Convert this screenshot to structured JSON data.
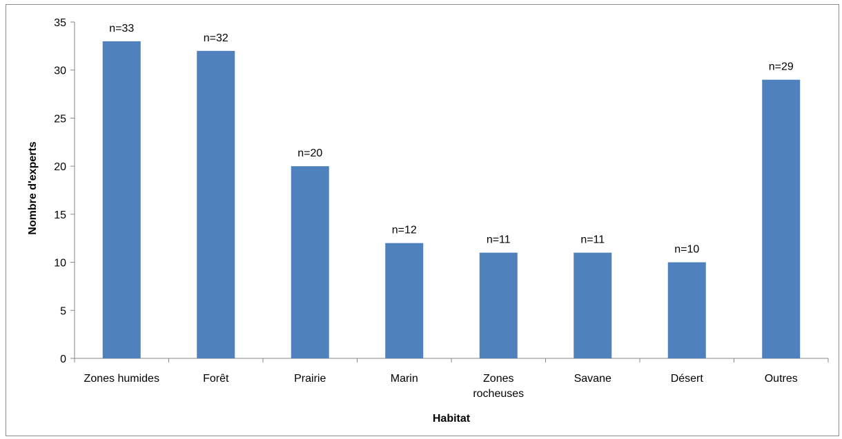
{
  "chart_data": {
    "type": "bar",
    "title": "",
    "xlabel": "Habitat",
    "ylabel": "Nombre d'experts",
    "ylim": [
      0,
      35
    ],
    "yticks": [
      0,
      5,
      10,
      15,
      20,
      25,
      30,
      35
    ],
    "grid": false,
    "legend": "none",
    "categories": [
      [
        "Zones humides"
      ],
      [
        "Forêt"
      ],
      [
        "Prairie"
      ],
      [
        "Marin"
      ],
      [
        "Zones",
        "rocheuses"
      ],
      [
        "Savane"
      ],
      [
        "Désert"
      ],
      [
        "Outres"
      ]
    ],
    "values": [
      33,
      32,
      20,
      12,
      11,
      11,
      10,
      29
    ],
    "data_labels": [
      "n=33",
      "n=32",
      "n=20",
      "n=12",
      "n=11",
      "n=11",
      "n=10",
      "n=29"
    ],
    "colors": {
      "bar": "#4f81bd",
      "axis": "#868686"
    }
  }
}
